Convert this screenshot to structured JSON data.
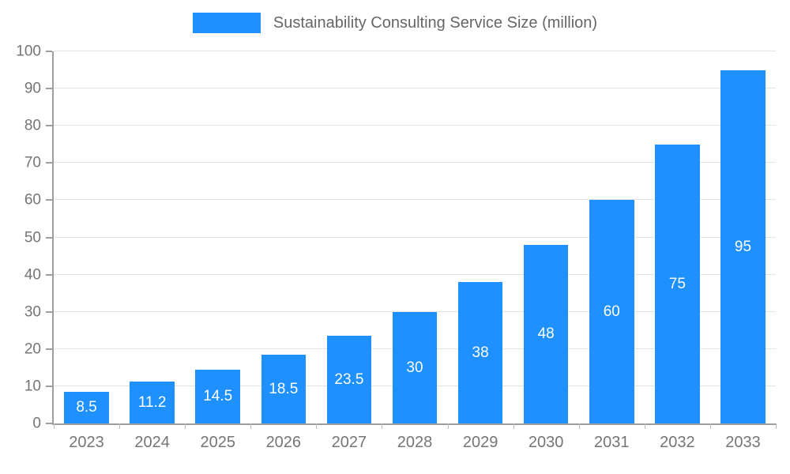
{
  "chart_data": {
    "type": "bar",
    "title": "Sustainability Consulting Service Size (million)",
    "categories": [
      "2023",
      "2024",
      "2025",
      "2026",
      "2027",
      "2028",
      "2029",
      "2030",
      "2031",
      "2032",
      "2033"
    ],
    "values": [
      8.5,
      11.2,
      14.5,
      18.5,
      23.5,
      30,
      38,
      48,
      60,
      75,
      95
    ],
    "xlabel": "",
    "ylabel": "",
    "ylim": [
      0,
      100
    ],
    "ytick_step": 10,
    "grid": true,
    "legend_position": "top-center",
    "bar_color": "#1E90FF",
    "bar_label_color": "#ffffff",
    "axis_text_color": "#757575",
    "title_color": "#666666",
    "gridline_color": "#e3e3e3",
    "axis_line_color": "#9e9e9e"
  }
}
